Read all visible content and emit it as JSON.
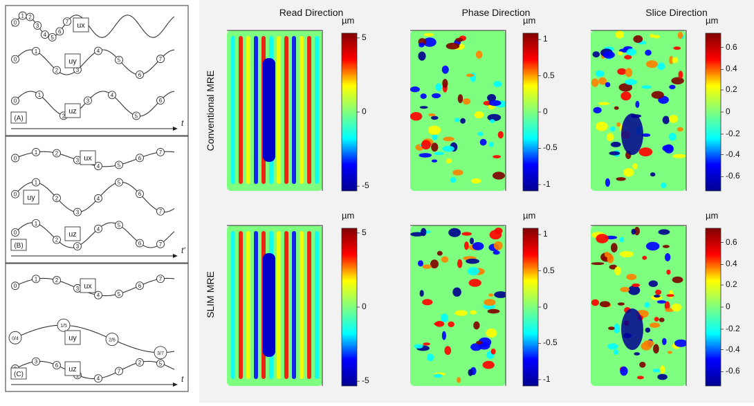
{
  "left_panel": {
    "panels": [
      {
        "tag": "(A)",
        "axis_label": "t",
        "lines": [
          {
            "label": "ux",
            "nodes": [
              "0",
              "1",
              "2",
              "3",
              "4",
              "5",
              "6",
              "7"
            ]
          },
          {
            "label": "uy",
            "nodes": [
              "0",
              "1",
              "2",
              "3",
              "4",
              "5",
              "6",
              "7"
            ]
          },
          {
            "label": "uz",
            "nodes": [
              "0",
              "1",
              "2",
              "3",
              "4",
              "5",
              "6"
            ]
          }
        ]
      },
      {
        "tag": "(B)",
        "axis_label": "t′",
        "lines": [
          {
            "label": "ux",
            "nodes": [
              "0",
              "1",
              "2",
              "3",
              "4",
              "5",
              "6",
              "7"
            ]
          },
          {
            "label": "uy",
            "nodes": [
              "0",
              "1",
              "2",
              "3",
              "4",
              "5",
              "6",
              "7"
            ]
          },
          {
            "label": "uz",
            "nodes": [
              "0",
              "1",
              "2",
              "3",
              "4",
              "5",
              "6",
              "7"
            ]
          }
        ]
      },
      {
        "tag": "(C)",
        "axis_label": "t",
        "lines": [
          {
            "label": "ux",
            "nodes": [
              "0",
              "1",
              "2",
              "3",
              "4",
              "5",
              "6",
              "7"
            ]
          },
          {
            "label": "uy",
            "nodes": [
              "0/4",
              "1/5",
              "2/6",
              "3/7"
            ]
          },
          {
            "label": "uz",
            "nodes": [
              "0",
              "3",
              "6",
              "1",
              "4",
              "7",
              "2",
              "5"
            ]
          }
        ]
      }
    ]
  },
  "right_panel": {
    "column_titles": [
      "Read Direction",
      "Phase Direction",
      "Slice Direction"
    ],
    "row_labels": [
      "Conventional MRE",
      "SLIM MRE"
    ],
    "colorbar_unit": "µm",
    "colorbars": [
      {
        "ticks": [
          "5",
          "0",
          "-5"
        ]
      },
      {
        "ticks": [
          "1",
          "0.5",
          "0",
          "-0.5",
          "-1"
        ]
      },
      {
        "ticks": [
          "0.6",
          "0.4",
          "0.2",
          "0",
          "-0.2",
          "-0.4",
          "-0.6"
        ]
      }
    ]
  },
  "colors": {
    "colormap": [
      "#00008f",
      "#0000ff",
      "#00ffff",
      "#7fff7f",
      "#ffff00",
      "#ff0000",
      "#800000"
    ]
  }
}
